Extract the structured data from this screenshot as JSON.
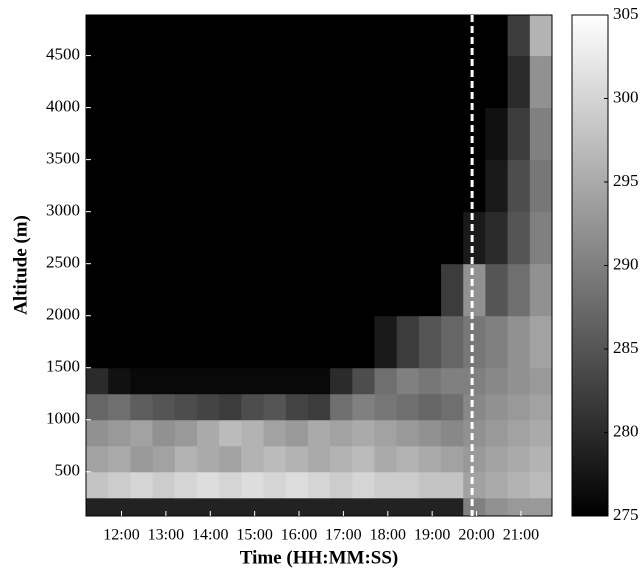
{
  "chart_data": {
    "type": "heatmap",
    "xlabel": "Time (HH:MM:SS)",
    "ylabel": "Altitude (m)",
    "colormap": "gray",
    "xlim": [
      11.2,
      21.7
    ],
    "ylim": [
      75,
      4890
    ],
    "clim": [
      275,
      305
    ],
    "xticks": [
      {
        "value": 12,
        "label": "12:00"
      },
      {
        "value": 13,
        "label": "13:00"
      },
      {
        "value": 14,
        "label": "14:00"
      },
      {
        "value": 15,
        "label": "15:00"
      },
      {
        "value": 16,
        "label": "16:00"
      },
      {
        "value": 17,
        "label": "17:00"
      },
      {
        "value": 18,
        "label": "18:00"
      },
      {
        "value": 19,
        "label": "19:00"
      },
      {
        "value": 20,
        "label": "20:00"
      },
      {
        "value": 21,
        "label": "21:00"
      }
    ],
    "yticks": [
      500,
      1000,
      1500,
      2000,
      2500,
      3000,
      3500,
      4000,
      4500
    ],
    "cticks": [
      275,
      280,
      285,
      290,
      295,
      300,
      305
    ],
    "marker_x": 19.9,
    "x_edges": [
      11.2,
      11.7,
      12.2,
      12.7,
      13.2,
      13.7,
      14.2,
      14.7,
      15.2,
      15.7,
      16.2,
      16.7,
      17.2,
      17.7,
      18.2,
      18.7,
      19.2,
      19.7,
      20.2,
      20.7,
      21.2,
      21.7
    ],
    "y_edges": [
      75,
      250,
      500,
      750,
      1000,
      1250,
      1500,
      2000,
      2500,
      3000,
      3500,
      4000,
      4500,
      4890
    ],
    "z": [
      [
        279,
        279,
        279,
        279,
        279,
        279,
        279,
        279,
        279,
        279,
        279,
        279,
        279,
        279,
        279,
        279,
        279,
        290,
        292,
        293,
        293
      ],
      [
        298,
        299,
        300,
        299,
        300,
        301,
        300,
        301,
        300,
        301,
        300,
        299,
        300,
        299,
        299,
        298,
        298,
        294,
        295,
        296,
        297
      ],
      [
        294,
        295,
        293,
        294,
        296,
        295,
        294,
        296,
        297,
        296,
        295,
        296,
        297,
        295,
        296,
        295,
        294,
        293,
        294,
        295,
        296
      ],
      [
        292,
        293,
        294,
        292,
        293,
        295,
        297,
        296,
        294,
        293,
        295,
        294,
        295,
        294,
        293,
        292,
        291,
        292,
        293,
        294,
        295
      ],
      [
        287,
        288,
        286,
        285,
        284,
        283,
        282,
        284,
        285,
        283,
        282,
        288,
        290,
        289,
        288,
        287,
        288,
        291,
        292,
        293,
        294
      ],
      [
        280,
        277,
        276,
        276,
        276,
        276,
        276,
        276,
        276,
        276,
        276,
        280,
        284,
        288,
        290,
        289,
        290,
        290,
        291,
        292,
        293
      ],
      [
        275,
        275,
        275,
        275,
        275,
        275,
        275,
        275,
        275,
        275,
        275,
        275,
        275,
        278,
        282,
        285,
        287,
        289,
        290,
        292,
        294
      ],
      [
        275,
        275,
        275,
        275,
        275,
        275,
        275,
        275,
        275,
        275,
        275,
        275,
        275,
        275,
        275,
        275,
        282,
        292,
        285,
        288,
        292
      ],
      [
        275,
        275,
        275,
        275,
        275,
        275,
        275,
        275,
        275,
        275,
        275,
        275,
        275,
        275,
        275,
        275,
        275,
        278,
        280,
        285,
        290
      ],
      [
        275,
        275,
        275,
        275,
        275,
        275,
        275,
        275,
        275,
        275,
        275,
        275,
        275,
        275,
        275,
        275,
        275,
        275,
        278,
        284,
        289
      ],
      [
        275,
        275,
        275,
        275,
        275,
        275,
        275,
        275,
        275,
        275,
        275,
        275,
        275,
        275,
        275,
        275,
        275,
        275,
        277,
        282,
        290
      ],
      [
        275,
        275,
        275,
        275,
        275,
        275,
        275,
        275,
        275,
        275,
        275,
        275,
        275,
        275,
        275,
        275,
        275,
        275,
        275,
        280,
        292
      ],
      [
        275,
        275,
        275,
        275,
        275,
        275,
        275,
        275,
        275,
        275,
        275,
        275,
        275,
        275,
        275,
        275,
        275,
        275,
        275,
        282,
        296
      ]
    ]
  }
}
